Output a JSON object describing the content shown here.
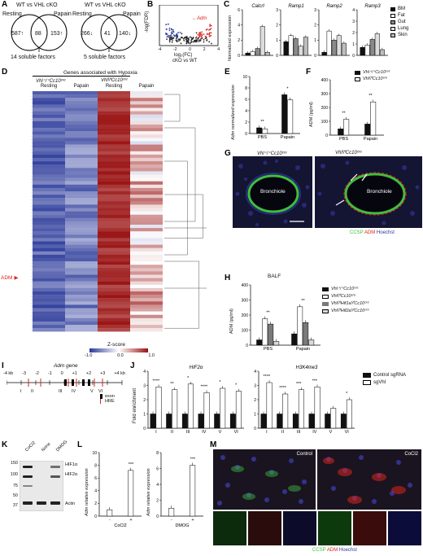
{
  "panel_labels": [
    "A",
    "B",
    "C",
    "D",
    "E",
    "F",
    "G",
    "H",
    "I",
    "J",
    "K",
    "L",
    "M"
  ],
  "panelA": {
    "venn1": {
      "title": "WT vs VHL cKO",
      "left_num": "587",
      "left_arrow": "↑",
      "mid": "88",
      "right_num": "153",
      "right_arrow": "↑",
      "left_cond": "Resting",
      "right_cond": "Papain",
      "factors": "14 soluble factors"
    },
    "venn2": {
      "title": "WT vs VHL cKO",
      "left_num": "266",
      "left_arrow": "↓",
      "mid": "41",
      "right_num": "140",
      "right_arrow": "↓",
      "left_cond": "Resting",
      "right_cond": "Papain",
      "factors": "5 soluble factors"
    }
  },
  "panelB": {
    "ylabel": "-log(FDR)",
    "xlabel1": "log₂(FC)",
    "xlabel2": "cKO vs WT",
    "annotation": "Adm",
    "xticks": [
      "-4",
      "-2",
      "0",
      "2",
      "4"
    ],
    "yticks": [
      "0",
      "5",
      "10"
    ]
  },
  "panelC": {
    "ylabel": "Normalized expression",
    "legend": [
      "BM",
      "Fat",
      "Gut",
      "Lung",
      "Skin"
    ],
    "legend_colors": [
      "#111111",
      "#ffffff",
      "#8a8a8a",
      "#dcdcdc",
      "#bdbdbd"
    ],
    "chart_data": [
      {
        "type": "bar",
        "title": "Calcrl",
        "categories": [
          "BM",
          "Fat",
          "Gut",
          "Lung",
          "Skin"
        ],
        "values": [
          0.3,
          0.5,
          0.9,
          3.8,
          0.4
        ],
        "yticks": [
          "0",
          "2",
          "4",
          "6"
        ],
        "ylim": [
          0,
          6
        ]
      },
      {
        "type": "bar",
        "title": "Ramp1",
        "categories": [
          "BM",
          "Fat",
          "Gut",
          "Lung",
          "Skin"
        ],
        "values": [
          0.9,
          1.3,
          1.1,
          0.6,
          1.2
        ],
        "yticks": [
          "0",
          "1",
          "2",
          "3"
        ],
        "ylim": [
          0,
          3
        ]
      },
      {
        "type": "bar",
        "title": "Ramp2",
        "categories": [
          "BM",
          "Fat",
          "Gut",
          "Lung",
          "Skin"
        ],
        "values": [
          0.2,
          1.6,
          1.0,
          1.3,
          0.8
        ],
        "yticks": [
          "0",
          "1",
          "2",
          "3"
        ],
        "ylim": [
          0,
          3
        ]
      },
      {
        "type": "bar",
        "title": "Ramp3",
        "categories": [
          "BM",
          "Fat",
          "Gut",
          "Lung",
          "Skin"
        ],
        "values": [
          0.7,
          0.9,
          1.4,
          1.9,
          0.5
        ],
        "yticks": [
          "0",
          "1",
          "2",
          "3",
          "4"
        ],
        "ylim": [
          0,
          4
        ]
      }
    ]
  },
  "panelD": {
    "title": "Genes associated with Hypoxia",
    "group1": "Vhl⁺/⁺Cc10ᶜʳᵉ",
    "group2": "Vhlᶠ/ᶠCc10ᶜʳᵉ",
    "cols": [
      "Resting",
      "Papain",
      "Resting",
      "Papain"
    ],
    "adm_label": "ADM",
    "zscore_label": "Z-score",
    "zticks": [
      "-1.0",
      "0.0",
      "1.0"
    ]
  },
  "panelE": {
    "ylabel": "Adm normalized expression",
    "chart_data": {
      "type": "bar",
      "categories": [
        "PBS",
        "Papain"
      ],
      "series": [
        {
          "values": [
            1.0,
            6.8
          ]
        },
        {
          "values": [
            0.8,
            5.9
          ]
        }
      ],
      "yticks": [
        "0",
        "2",
        "4",
        "6",
        "8",
        "10"
      ],
      "ylim": [
        0,
        10
      ]
    },
    "sig": [
      "**",
      "*"
    ]
  },
  "panelF": {
    "ylabel": "ADM (pg/ml)",
    "legend": [
      "Vhl⁺/⁺Cc10ᶜʳᵉ",
      "Vhlᶠ/ᶠCc10ᶜʳᵉ"
    ],
    "chart_data": {
      "type": "bar",
      "categories": [
        "PBS",
        "Papain"
      ],
      "series": [
        {
          "values": [
            45,
            80
          ]
        },
        {
          "values": [
            115,
            240
          ]
        }
      ],
      "yticks": [
        "0",
        "100",
        "200",
        "300",
        "400"
      ],
      "ylim": [
        0,
        400
      ]
    },
    "sig": [
      "*",
      "**",
      "**"
    ]
  },
  "panelG": {
    "label1": "Vhl⁺/⁺Cc10ᶜʳᵉ",
    "label2": "Vhlᶠ/ᶠCc10ᶜʳᵉ",
    "bronchiole": "Bronchiole",
    "stains": [
      "CCSP",
      "ADM",
      "Hoechst"
    ]
  },
  "panelH": {
    "title": "BALF",
    "ylabel": "ADM (pg/ml)",
    "legend": [
      "Vhl⁺/⁺Cc10ᶜʳᵉ",
      "Vhlᶠ/ᶠCc10ᶜʳᵉ",
      "Vhlᶠ/ᶠHif1aᶠ/ᶠCc10ᶜʳᵉ",
      "Vhlᶠ/ᶠHif2aᶠ/ᶠCc10ᶜʳᵉ"
    ],
    "chart_data": {
      "type": "bar",
      "categories": [
        "PBS",
        "Papain"
      ],
      "series": [
        {
          "values": [
            35,
            75
          ]
        },
        {
          "values": [
            175,
            255
          ]
        },
        {
          "values": [
            140,
            150
          ]
        },
        {
          "values": [
            25,
            35
          ]
        }
      ],
      "yticks": [
        "0",
        "100",
        "200",
        "300",
        "400"
      ],
      "ylim": [
        0,
        400
      ]
    },
    "sig": [
      "**",
      "**",
      "**",
      "**",
      "*"
    ]
  },
  "panelI": {
    "title": "Adm gene",
    "ticks": [
      "-4 kb",
      "-3",
      "-2",
      "-1",
      "0",
      "+1",
      "+2",
      "+3",
      "+4 kb"
    ],
    "sites": [
      "I",
      "II",
      "III",
      "IV",
      "V",
      "VI"
    ],
    "legend_exon": "exon",
    "legend_hre": "HRE"
  },
  "panelJ": {
    "ylabel": "Fold enrichment",
    "legend": [
      "Control sgRNA",
      "sgVhl"
    ],
    "chart_data": [
      {
        "type": "bar",
        "title": "HIF2α",
        "categories": [
          "I",
          "II",
          "III",
          "IV",
          "V",
          "VI"
        ],
        "series": [
          {
            "values": [
              1,
              1,
              1,
              1,
              1,
              1
            ]
          },
          {
            "values": [
              2.9,
              2.7,
              3.1,
              2.5,
              2.8,
              2.6
            ]
          }
        ],
        "ylim": [
          0,
          4
        ],
        "yticks": [
          "0",
          "1",
          "2",
          "3",
          "4"
        ],
        "sig": [
          "****",
          "**",
          "*",
          "****",
          "*",
          "*"
        ]
      },
      {
        "type": "bar",
        "title": "H3K4me3",
        "categories": [
          "I",
          "II",
          "III",
          "IV",
          "V",
          "VI"
        ],
        "series": [
          {
            "values": [
              1,
              1,
              1,
              1,
              1,
              1
            ]
          },
          {
            "values": [
              3.2,
              2.4,
              2.7,
              2.9,
              1.4,
              2.0
            ]
          }
        ],
        "ylim": [
          0,
          4
        ],
        "yticks": [
          "0",
          "1",
          "2",
          "3",
          "4"
        ],
        "sig": [
          "****",
          "****",
          "***",
          "***",
          "",
          "*"
        ]
      }
    ]
  },
  "panelK": {
    "lanes": [
      "CoCl2",
      "None",
      "DMOG"
    ],
    "mw": [
      "150",
      "100",
      "75",
      "50",
      "37"
    ],
    "bands": [
      "HIF1α",
      "HIF2α",
      "Actin"
    ]
  },
  "panelL": {
    "ylabel": "Adm relative expression",
    "chart_data": [
      {
        "type": "bar",
        "categories": [
          "-",
          "+"
        ],
        "values": [
          1.0,
          7.2
        ],
        "xlabel": "CoCl2",
        "ylim": [
          0,
          10
        ],
        "yticks": [
          "0",
          "2",
          "4",
          "6",
          "8",
          "10"
        ],
        "sig": "***"
      },
      {
        "type": "bar",
        "categories": [
          "-",
          "+"
        ],
        "values": [
          1.0,
          6.4
        ],
        "xlabel": "DMOG",
        "ylim": [
          0,
          8
        ],
        "yticks": [
          "0",
          "2",
          "4",
          "6",
          "8"
        ],
        "sig": "***"
      }
    ]
  },
  "panelM": {
    "control": "Control",
    "cocl2": "CoCl2",
    "stains": [
      "CCSP",
      "ADM",
      "Hoechst"
    ]
  },
  "colors": {
    "red": "#d7261e",
    "blue": "#2b3a9a",
    "green": "#3fbf3f",
    "dark_red": "#9a1313"
  }
}
